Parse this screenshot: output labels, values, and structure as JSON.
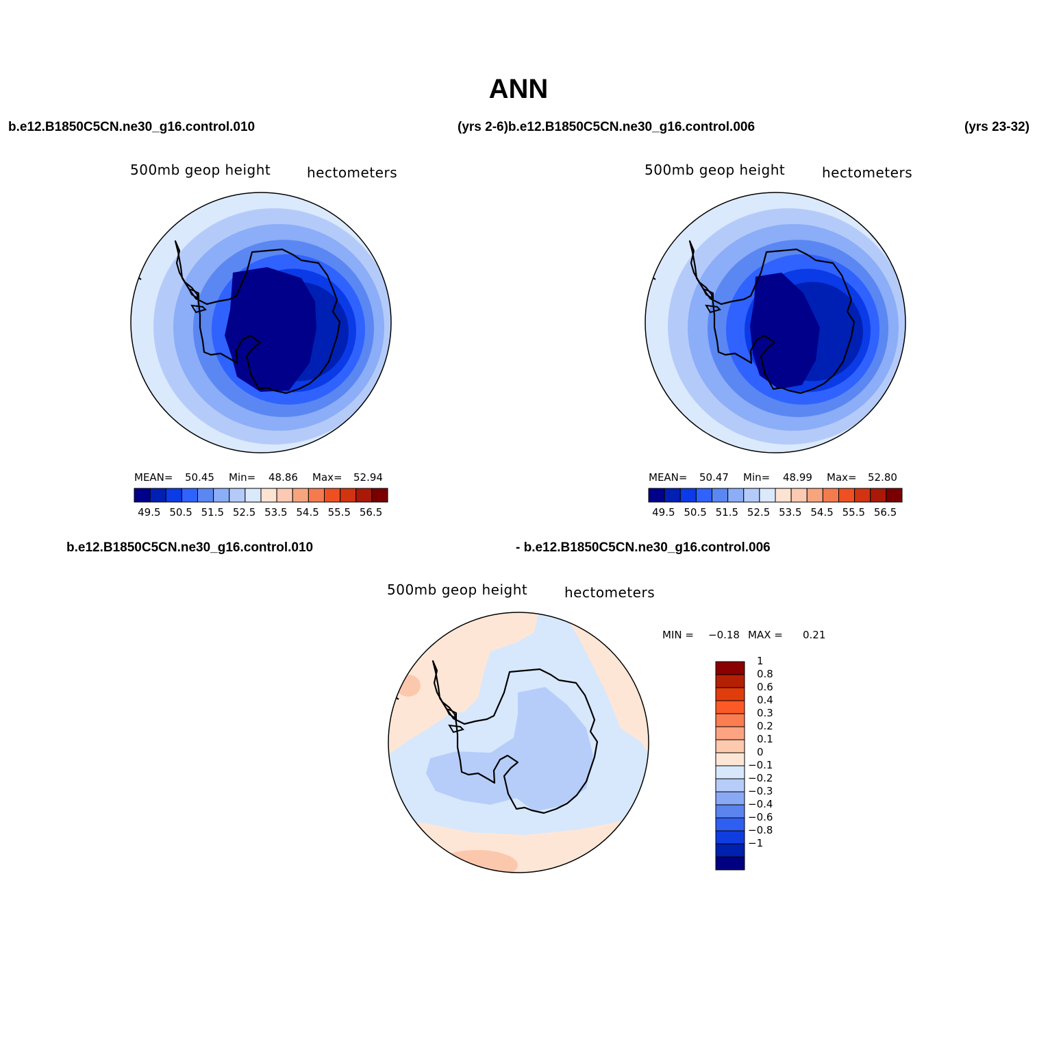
{
  "figure": {
    "title": "ANN",
    "top_left_case": "b.e12.B1850C5CN.ne30_g16.control.010",
    "top_mid_case": "(yrs 2-6)b.e12.B1850C5CN.ne30_g16.control.006",
    "top_right_case": "(yrs 23-32)",
    "bottom_case_left": "b.e12.B1850C5CN.ne30_g16.control.010",
    "bottom_case_right": "- b.e12.B1850C5CN.ne30_g16.control.006"
  },
  "panels": [
    {
      "variable": "500mb geop height",
      "units": "hectometers",
      "stats": {
        "mean_label": "MEAN=",
        "mean": "50.45",
        "min_label": "Min=",
        "min": "48.86",
        "max_label": "Max=",
        "max": "52.94"
      }
    },
    {
      "variable": "500mb geop height",
      "units": "hectometers",
      "stats": {
        "mean_label": "MEAN=",
        "mean": "50.47",
        "min_label": "Min=",
        "min": "48.99",
        "max_label": "Max=",
        "max": "52.80"
      }
    },
    {
      "variable": "500mb geop height",
      "units": "hectometers",
      "stats": {
        "min_label": "MIN =",
        "min": "−0.18",
        "max_label": "MAX =",
        "max": "0.21"
      }
    }
  ],
  "colorbars": {
    "absolute": {
      "colors": [
        "#00008a",
        "#0020b4",
        "#0a3be6",
        "#2f62ff",
        "#5a87f2",
        "#8cadf7",
        "#b4cbfa",
        "#dbe9fd",
        "#fde3d2",
        "#fccab3",
        "#f7a57f",
        "#f47b4e",
        "#ee5021",
        "#d13411",
        "#a81a07",
        "#7a0000"
      ],
      "labels": [
        "49.5",
        "50.5",
        "51.5",
        "52.5",
        "53.5",
        "54.5",
        "55.5",
        "56.5"
      ]
    },
    "difference": {
      "colors_top_to_bottom": [
        "#8b0000",
        "#b42003",
        "#e03c0c",
        "#fb5a26",
        "#fb7d52",
        "#fca482",
        "#fdcaae",
        "#fee6d6",
        "#d7e8fd",
        "#b6cdfa",
        "#8aa9f5",
        "#5b84ef",
        "#2f5ff0",
        "#103de0",
        "#0020b0",
        "#000080"
      ],
      "labels": [
        "1",
        "0.8",
        "0.6",
        "0.4",
        "0.3",
        "0.2",
        "0.1",
        "0",
        "−0.1",
        "−0.2",
        "−0.3",
        "−0.4",
        "−0.6",
        "−0.8",
        "−1"
      ]
    }
  },
  "map_colors": {
    "panel1_rings": [
      "#dbe9fd",
      "#b4cbfa",
      "#8cadf7",
      "#5a87f2",
      "#2f62ff",
      "#0a3be6",
      "#0020b4",
      "#00008a"
    ],
    "panel2_rings": [
      "#dbe9fd",
      "#b4cbfa",
      "#8cadf7",
      "#5a87f2",
      "#2f62ff",
      "#0a3be6",
      "#0020b4",
      "#00008a"
    ],
    "diff_background": "#d7e8fd",
    "diff_positive": "#fee6d6",
    "diff_positive_strong": "#fcc8ad",
    "diff_negative": "#b6cdfa",
    "coast": "#000000"
  }
}
